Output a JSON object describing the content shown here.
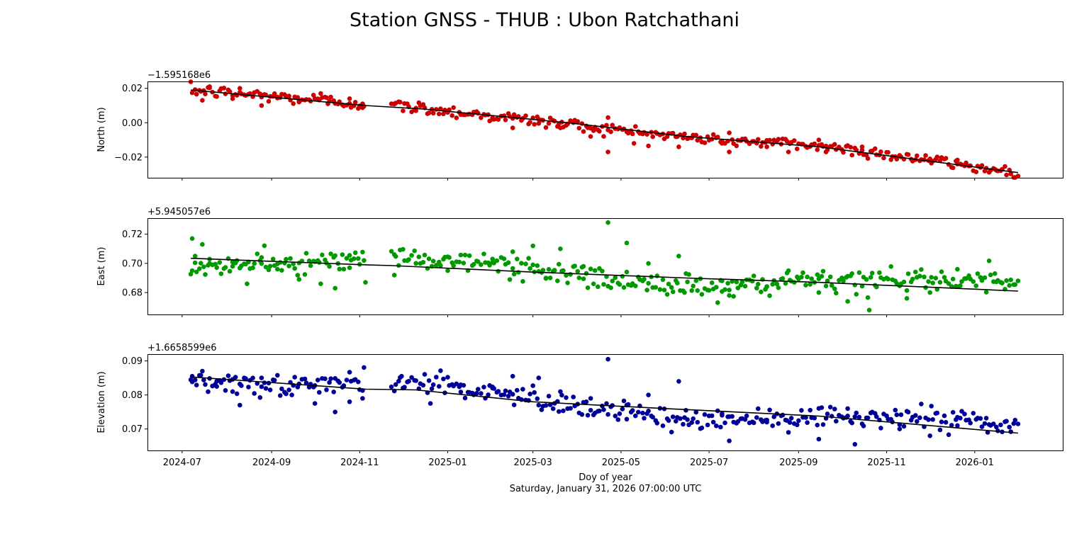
{
  "figure": {
    "title": "Station GNSS - THUB : Ubon Ratchathani",
    "xlabel": "Doy of year",
    "footer": "Saturday, January 31, 2026 07:00:00 UTC",
    "x_ticks": [
      "2024-07",
      "2024-09",
      "2024-11",
      "2025-01",
      "2025-03",
      "2025-05",
      "2025-07",
      "2025-09",
      "2025-11",
      "2026-01"
    ]
  },
  "colors": {
    "north": "#cc0000",
    "east": "#009900",
    "elevation": "#000099",
    "trend": "#000000"
  },
  "chart_data": [
    {
      "type": "scatter",
      "ylabel": "North (m)",
      "offset_text": "−1.595168e6",
      "ylim": [
        -0.032,
        0.024
      ],
      "yticks": [
        0.02,
        0.0,
        -0.02
      ],
      "ytick_labels": [
        "0.02",
        "0.00",
        "−0.02"
      ],
      "xlim": [
        "2024-06-07",
        "2026-03-03"
      ],
      "gaps": [
        [
          "2024-11-05",
          "2024-11-23"
        ]
      ],
      "trend": [
        {
          "x": "2024-07-07",
          "y": 0.019
        },
        {
          "x": "2024-11-05",
          "y": 0.01
        },
        {
          "x": "2024-12-15",
          "y": 0.008
        },
        {
          "x": "2025-03-25",
          "y": 0.0
        },
        {
          "x": "2025-06-15",
          "y": -0.008
        },
        {
          "x": "2025-09-15",
          "y": -0.014
        },
        {
          "x": "2026-01-31",
          "y": -0.029
        }
      ],
      "points": [
        {
          "x": "2024-07-15",
          "y": 0.013
        },
        {
          "x": "2024-07-20",
          "y": 0.021
        },
        {
          "x": "2024-08-05",
          "y": 0.014
        },
        {
          "x": "2024-08-10",
          "y": 0.02
        },
        {
          "x": "2024-08-25",
          "y": 0.01
        },
        {
          "x": "2024-09-05",
          "y": 0.015
        },
        {
          "x": "2024-09-20",
          "y": 0.012
        },
        {
          "x": "2024-10-05",
          "y": 0.017
        },
        {
          "x": "2024-10-10",
          "y": 0.011
        },
        {
          "x": "2024-10-25",
          "y": 0.014
        },
        {
          "x": "2024-11-03",
          "y": 0.011
        },
        {
          "x": "2024-11-25",
          "y": 0.011
        },
        {
          "x": "2024-12-10",
          "y": 0.007
        },
        {
          "x": "2025-01-01",
          "y": 0.006
        },
        {
          "x": "2025-02-01",
          "y": 0.002
        },
        {
          "x": "2025-02-15",
          "y": -0.003
        },
        {
          "x": "2025-03-05",
          "y": 0.002
        },
        {
          "x": "2025-03-20",
          "y": -0.003
        },
        {
          "x": "2025-04-10",
          "y": -0.008
        },
        {
          "x": "2025-04-22",
          "y": 0.003
        },
        {
          "x": "2025-04-22",
          "y": -0.017
        },
        {
          "x": "2025-05-10",
          "y": -0.012
        },
        {
          "x": "2025-06-10",
          "y": -0.014
        },
        {
          "x": "2025-07-10",
          "y": -0.012
        },
        {
          "x": "2025-07-15",
          "y": -0.017
        },
        {
          "x": "2025-08-10",
          "y": -0.014
        },
        {
          "x": "2025-08-25",
          "y": -0.017
        },
        {
          "x": "2025-09-15",
          "y": -0.01
        },
        {
          "x": "2025-09-20",
          "y": -0.017
        },
        {
          "x": "2025-10-15",
          "y": -0.014
        },
        {
          "x": "2025-11-10",
          "y": -0.019
        },
        {
          "x": "2025-12-01",
          "y": -0.021
        },
        {
          "x": "2025-12-20",
          "y": -0.024
        },
        {
          "x": "2026-01-15",
          "y": -0.027
        },
        {
          "x": "2026-01-31",
          "y": -0.031
        }
      ]
    },
    {
      "type": "scatter",
      "ylabel": "East (m)",
      "offset_text": "+5.945057e6",
      "ylim": [
        0.665,
        0.731
      ],
      "yticks": [
        0.72,
        0.7,
        0.68
      ],
      "ytick_labels": [
        "0.72",
        "0.70",
        "0.68"
      ],
      "xlim": [
        "2024-06-07",
        "2026-03-03"
      ],
      "gaps": [
        [
          "2024-11-05",
          "2024-11-23"
        ]
      ],
      "trend": [
        {
          "x": "2024-07-07",
          "y": 0.7035
        },
        {
          "x": "2024-11-05",
          "y": 0.699
        },
        {
          "x": "2024-11-23",
          "y": 0.6985
        },
        {
          "x": "2025-03-01",
          "y": 0.694
        },
        {
          "x": "2025-06-15",
          "y": 0.69
        },
        {
          "x": "2025-09-15",
          "y": 0.687
        },
        {
          "x": "2026-01-31",
          "y": 0.681
        }
      ],
      "points": [
        {
          "x": "2024-07-08",
          "y": 0.717
        },
        {
          "x": "2024-07-10",
          "y": 0.705
        },
        {
          "x": "2024-07-15",
          "y": 0.713
        },
        {
          "x": "2024-07-20",
          "y": 0.7
        },
        {
          "x": "2024-08-05",
          "y": 0.698
        },
        {
          "x": "2024-08-15",
          "y": 0.686
        },
        {
          "x": "2024-08-25",
          "y": 0.704
        },
        {
          "x": "2024-09-05",
          "y": 0.696
        },
        {
          "x": "2024-09-20",
          "y": 0.689
        },
        {
          "x": "2024-10-05",
          "y": 0.686
        },
        {
          "x": "2024-10-15",
          "y": 0.683
        },
        {
          "x": "2024-10-25",
          "y": 0.697
        },
        {
          "x": "2024-11-05",
          "y": 0.687
        },
        {
          "x": "2024-11-25",
          "y": 0.692
        },
        {
          "x": "2024-12-10",
          "y": 0.7
        },
        {
          "x": "2025-01-01",
          "y": 0.695
        },
        {
          "x": "2025-02-01",
          "y": 0.703
        },
        {
          "x": "2025-02-15",
          "y": 0.708
        },
        {
          "x": "2025-03-01",
          "y": 0.712
        },
        {
          "x": "2025-03-10",
          "y": 0.69
        },
        {
          "x": "2025-03-20",
          "y": 0.71
        },
        {
          "x": "2025-04-05",
          "y": 0.698
        },
        {
          "x": "2025-04-22",
          "y": 0.728
        },
        {
          "x": "2025-05-05",
          "y": 0.714
        },
        {
          "x": "2025-05-20",
          "y": 0.7
        },
        {
          "x": "2025-06-10",
          "y": 0.705
        },
        {
          "x": "2025-06-15",
          "y": 0.693
        },
        {
          "x": "2025-07-10",
          "y": 0.688
        },
        {
          "x": "2025-07-15",
          "y": 0.678
        },
        {
          "x": "2025-08-10",
          "y": 0.684
        },
        {
          "x": "2025-08-25",
          "y": 0.695
        },
        {
          "x": "2025-09-15",
          "y": 0.68
        },
        {
          "x": "2025-10-05",
          "y": 0.674
        },
        {
          "x": "2025-10-20",
          "y": 0.668
        },
        {
          "x": "2025-11-15",
          "y": 0.676
        },
        {
          "x": "2025-12-01",
          "y": 0.68
        },
        {
          "x": "2025-12-20",
          "y": 0.684
        },
        {
          "x": "2026-01-15",
          "y": 0.693
        },
        {
          "x": "2026-01-31",
          "y": 0.688
        }
      ]
    },
    {
      "type": "scatter",
      "ylabel": "Elevation (m)",
      "offset_text": "+1.6658599e6",
      "ylim": [
        0.0637,
        0.092
      ],
      "yticks": [
        0.09,
        0.08,
        0.07
      ],
      "ytick_labels": [
        "0.09",
        "0.08",
        "0.07"
      ],
      "xlim": [
        "2024-06-07",
        "2026-03-03"
      ],
      "gaps": [
        [
          "2024-11-05",
          "2024-11-23"
        ]
      ],
      "trend": [
        {
          "x": "2024-07-07",
          "y": 0.0853
        },
        {
          "x": "2024-11-05",
          "y": 0.0817
        },
        {
          "x": "2024-12-10",
          "y": 0.0815
        },
        {
          "x": "2025-03-01",
          "y": 0.078
        },
        {
          "x": "2025-06-01",
          "y": 0.076
        },
        {
          "x": "2025-09-15",
          "y": 0.0738
        },
        {
          "x": "2026-01-31",
          "y": 0.0688
        }
      ],
      "points": [
        {
          "x": "2024-07-08",
          "y": 0.0855
        },
        {
          "x": "2024-07-15",
          "y": 0.087
        },
        {
          "x": "2024-07-25",
          "y": 0.0825
        },
        {
          "x": "2024-08-05",
          "y": 0.081
        },
        {
          "x": "2024-08-10",
          "y": 0.077
        },
        {
          "x": "2024-08-25",
          "y": 0.085
        },
        {
          "x": "2024-09-15",
          "y": 0.08
        },
        {
          "x": "2024-10-01",
          "y": 0.0775
        },
        {
          "x": "2024-10-15",
          "y": 0.075
        },
        {
          "x": "2024-10-25",
          "y": 0.078
        },
        {
          "x": "2024-11-03",
          "y": 0.079
        },
        {
          "x": "2024-11-30",
          "y": 0.0855
        },
        {
          "x": "2024-12-20",
          "y": 0.0775
        },
        {
          "x": "2025-01-10",
          "y": 0.083
        },
        {
          "x": "2025-02-01",
          "y": 0.082
        },
        {
          "x": "2025-02-15",
          "y": 0.0855
        },
        {
          "x": "2025-03-05",
          "y": 0.085
        },
        {
          "x": "2025-03-20",
          "y": 0.081
        },
        {
          "x": "2025-04-10",
          "y": 0.079
        },
        {
          "x": "2025-04-22",
          "y": 0.0905
        },
        {
          "x": "2025-05-05",
          "y": 0.077
        },
        {
          "x": "2025-05-20",
          "y": 0.08
        },
        {
          "x": "2025-06-10",
          "y": 0.084
        },
        {
          "x": "2025-06-15",
          "y": 0.0755
        },
        {
          "x": "2025-07-10",
          "y": 0.0745
        },
        {
          "x": "2025-07-15",
          "y": 0.0665
        },
        {
          "x": "2025-08-10",
          "y": 0.072
        },
        {
          "x": "2025-08-25",
          "y": 0.069
        },
        {
          "x": "2025-09-15",
          "y": 0.067
        },
        {
          "x": "2025-10-05",
          "y": 0.076
        },
        {
          "x": "2025-10-10",
          "y": 0.0655
        },
        {
          "x": "2025-11-10",
          "y": 0.07
        },
        {
          "x": "2025-12-01",
          "y": 0.068
        },
        {
          "x": "2025-12-20",
          "y": 0.071
        },
        {
          "x": "2026-01-10",
          "y": 0.069
        },
        {
          "x": "2026-01-31",
          "y": 0.0715
        }
      ]
    }
  ]
}
